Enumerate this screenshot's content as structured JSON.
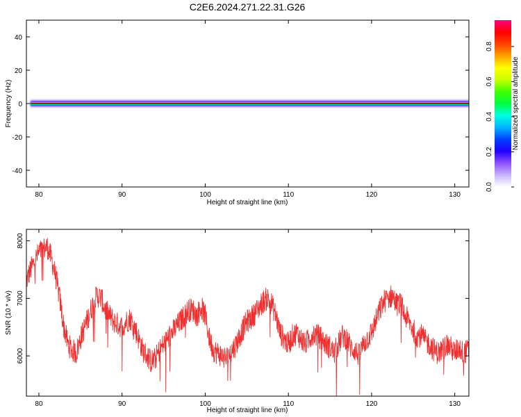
{
  "title": "C2E6.2024.271.22.31.G26",
  "spectrogram": {
    "type": "heatmap",
    "xlabel": "Height of straight line (km)",
    "ylabel": "Frequency (Hz)",
    "xlim": [
      78.5,
      131.7
    ],
    "ylim": [
      -50,
      50
    ],
    "x_ticks": [
      80,
      90,
      100,
      110,
      120,
      130
    ],
    "y_ticks": [
      40,
      20,
      0,
      -20,
      -40
    ],
    "band_center_hz": 0,
    "colorbar": {
      "label": "Normalized spectral amplitude",
      "ticks": [
        "0.0",
        "0.2",
        "0.4",
        "0.6",
        "0.8"
      ],
      "range": [
        0,
        0.95
      ],
      "colors": [
        "#ffffff",
        "#c8b4ff",
        "#8c50ff",
        "#2200ff",
        "#0040ff",
        "#00b4ff",
        "#00ffe0",
        "#00ff40",
        "#40ff00",
        "#c8ff00",
        "#ffff00",
        "#ffa000",
        "#ff4000",
        "#ff0000",
        "#ff0080"
      ]
    }
  },
  "snr": {
    "type": "line",
    "xlabel": "Height of straight line (km)",
    "ylabel": "SNR (10 * v/v)",
    "xlim": [
      78.5,
      131.7
    ],
    "ylim": [
      5300,
      8200
    ],
    "x_ticks": [
      80,
      90,
      100,
      110,
      120,
      130
    ],
    "y_ticks": [
      8000,
      7000,
      6000
    ],
    "color": "#f03030",
    "x": [
      78.5,
      79.0,
      79.5,
      80.0,
      80.5,
      81.0,
      81.5,
      82.0,
      82.5,
      83.0,
      83.5,
      84.0,
      84.5,
      85.0,
      85.5,
      86.0,
      86.5,
      87.0,
      87.5,
      88.0,
      88.5,
      89.0,
      89.5,
      90.0,
      90.5,
      91.0,
      91.5,
      92.0,
      92.5,
      93.0,
      93.5,
      94.0,
      94.5,
      95.0,
      95.5,
      96.0,
      96.5,
      97.0,
      97.5,
      98.0,
      98.5,
      99.0,
      99.5,
      100.0,
      100.5,
      101.0,
      101.5,
      102.0,
      102.5,
      103.0,
      103.5,
      104.0,
      104.5,
      105.0,
      105.5,
      106.0,
      106.5,
      107.0,
      107.5,
      108.0,
      108.5,
      109.0,
      109.5,
      110.0,
      110.5,
      111.0,
      111.5,
      112.0,
      112.5,
      113.0,
      113.5,
      114.0,
      114.5,
      115.0,
      115.5,
      116.0,
      116.5,
      117.0,
      117.5,
      118.0,
      118.5,
      119.0,
      119.5,
      120.0,
      120.5,
      121.0,
      121.5,
      122.0,
      122.5,
      123.0,
      123.5,
      124.0,
      124.5,
      125.0,
      125.5,
      126.0,
      126.5,
      127.0,
      127.5,
      128.0,
      128.5,
      129.0,
      129.5,
      130.0,
      130.5,
      131.0,
      131.7
    ],
    "values": [
      7300,
      7500,
      7650,
      7800,
      7850,
      7900,
      7700,
      7400,
      7000,
      6500,
      6200,
      6100,
      6050,
      6300,
      6500,
      6700,
      6900,
      7050,
      7000,
      6800,
      6700,
      6600,
      6550,
      6500,
      6600,
      6650,
      6500,
      6300,
      6100,
      6000,
      5900,
      5950,
      6100,
      6200,
      6300,
      6400,
      6500,
      6600,
      6700,
      6800,
      6800,
      6700,
      6850,
      6700,
      6300,
      6100,
      6050,
      6000,
      5950,
      6050,
      6150,
      6300,
      6450,
      6600,
      6650,
      6750,
      6850,
      6950,
      7000,
      6900,
      6700,
      6400,
      6300,
      6200,
      6350,
      6400,
      6300,
      6200,
      6300,
      6400,
      6350,
      6300,
      6200,
      6150,
      6050,
      6200,
      6350,
      6300,
      6150,
      6100,
      6000,
      6200,
      6300,
      6400,
      6600,
      6800,
      6950,
      7000,
      7050,
      6900,
      6900,
      6700,
      6600,
      6450,
      6350,
      6350,
      6250,
      6200,
      6100,
      6050,
      6100,
      6200,
      6150,
      6050,
      6150,
      6050,
      6100
    ]
  }
}
